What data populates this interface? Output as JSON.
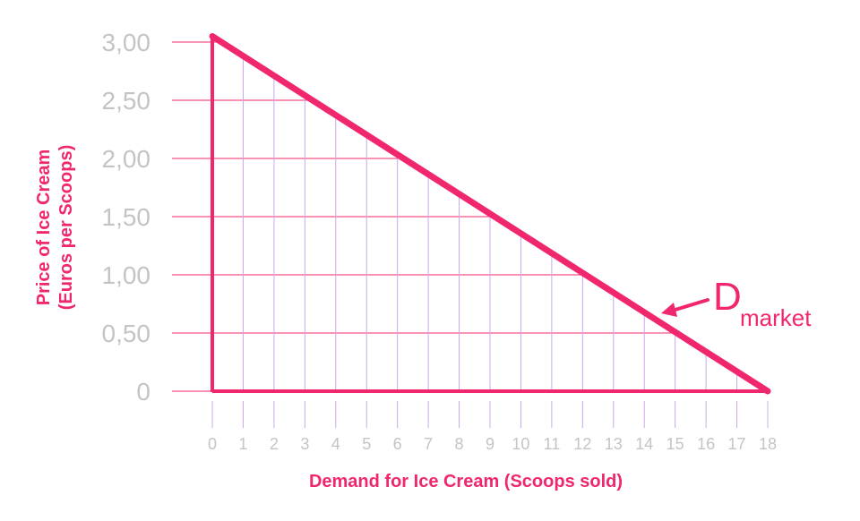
{
  "chart_data": {
    "type": "line",
    "title": "",
    "xlabel": "Demand for Ice Cream (Scoops sold)",
    "ylabel_line1": "Price of Ice Cream",
    "ylabel_line2": "(Euros per Scoops)",
    "x_ticks": [
      "0",
      "1",
      "2",
      "3",
      "4",
      "5",
      "6",
      "7",
      "8",
      "9",
      "10",
      "11",
      "12",
      "13",
      "14",
      "15",
      "16",
      "17",
      "18"
    ],
    "y_ticks": [
      {
        "value": 0,
        "label": "0"
      },
      {
        "value": 0.5,
        "label": "0,50"
      },
      {
        "value": 1.0,
        "label": "1,00"
      },
      {
        "value": 1.5,
        "label": "1,50"
      },
      {
        "value": 2.0,
        "label": "2,00"
      },
      {
        "value": 2.5,
        "label": "2,50"
      },
      {
        "value": 3.0,
        "label": "3,00"
      }
    ],
    "xlim": [
      0,
      18
    ],
    "ylim": [
      0,
      3.0
    ],
    "grid": true,
    "series": [
      {
        "name": "D market",
        "x": [
          0,
          18
        ],
        "y": [
          3.05,
          0
        ]
      }
    ],
    "annotation": {
      "main": "D",
      "sub": "market"
    },
    "colors": {
      "accent": "#f0276e",
      "grid": "#c9a8f0",
      "tick_text": "#c4c4c4"
    }
  }
}
